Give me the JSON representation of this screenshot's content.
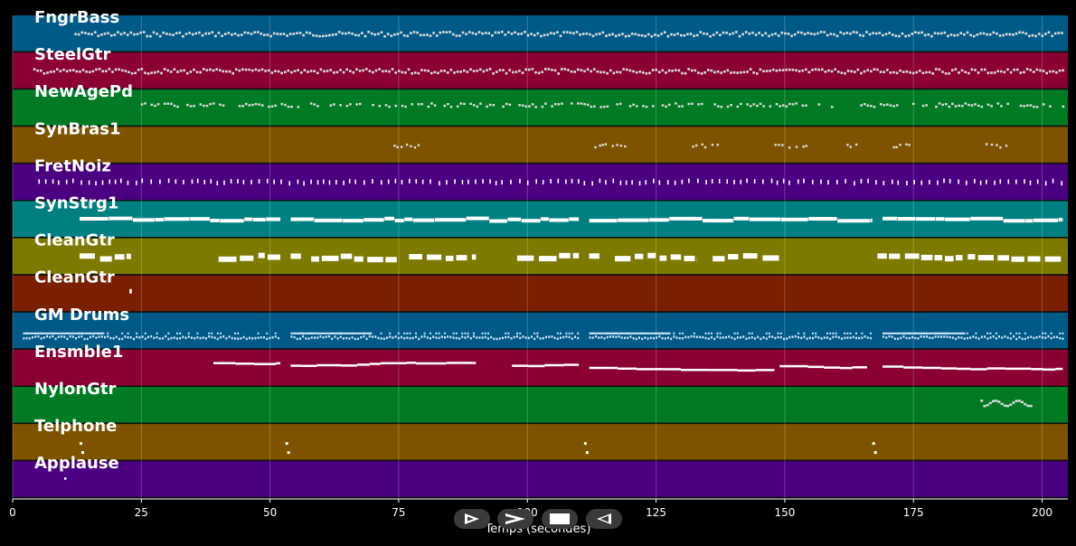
{
  "chart_data": {
    "type": "piano-roll",
    "xlabel": "Temps (secondes)",
    "xlim": [
      0,
      205
    ],
    "x_ticks": [
      0,
      25,
      50,
      75,
      100,
      125,
      150,
      175,
      200
    ],
    "grid": true,
    "tracks": [
      {
        "name": "FngrBass",
        "color": "#005a87",
        "segments": [
          [
            12,
            204
          ]
        ],
        "style": "dense-small"
      },
      {
        "name": "SteelGtr",
        "color": "#8a0032",
        "segments": [
          [
            4,
            204
          ]
        ],
        "style": "dense-small"
      },
      {
        "name": "NewAgePd",
        "color": "#007a23",
        "segments": [
          [
            23,
            204
          ]
        ],
        "style": "sparse-small"
      },
      {
        "name": "SynBras1",
        "color": "#7d5300",
        "segments": [
          [
            74,
            79
          ],
          [
            113,
            119
          ],
          [
            132,
            137
          ],
          [
            148,
            154
          ],
          [
            162,
            164
          ],
          [
            171,
            175
          ],
          [
            189,
            193
          ]
        ],
        "style": "dots"
      },
      {
        "name": "FretNoiz",
        "color": "#4a0080",
        "segments": [
          [
            5,
            204
          ]
        ],
        "style": "ticks"
      },
      {
        "name": "SynStrg1",
        "color": "#008080",
        "segments": [
          [
            13,
            52
          ],
          [
            54,
            110
          ],
          [
            112,
            167
          ],
          [
            169,
            204
          ]
        ],
        "style": "bars"
      },
      {
        "name": "CleanGtr",
        "color": "#7d7a00",
        "segments": [
          [
            13,
            23
          ],
          [
            40,
            52
          ],
          [
            54,
            56
          ],
          [
            58,
            75
          ],
          [
            77,
            90
          ],
          [
            98,
            110
          ],
          [
            112,
            114
          ],
          [
            117,
            133
          ],
          [
            136,
            149
          ],
          [
            168,
            204
          ]
        ],
        "style": "blocks"
      },
      {
        "name": "CleanGtr",
        "color": "#7a1f00",
        "segments": [
          [
            22,
            23
          ]
        ],
        "style": "single"
      },
      {
        "name": "GM Drums",
        "color": "#005a87",
        "segments": [
          [
            2,
            52
          ],
          [
            54,
            110
          ],
          [
            112,
            167
          ],
          [
            169,
            204
          ]
        ],
        "style": "drums"
      },
      {
        "name": "Ensmble1",
        "color": "#8a0032",
        "segments": [
          [
            39,
            52
          ],
          [
            54,
            90
          ],
          [
            97,
            110
          ],
          [
            112,
            148
          ],
          [
            149,
            166
          ],
          [
            169,
            204
          ]
        ],
        "style": "lines"
      },
      {
        "name": "NylonGtr",
        "color": "#007a23",
        "segments": [
          [
            188,
            198
          ]
        ],
        "style": "squiggle"
      },
      {
        "name": "Telphone",
        "color": "#7d5300",
        "segments": [
          [
            13,
            13.5
          ],
          [
            53,
            53.5
          ],
          [
            111,
            111.5
          ],
          [
            167,
            167.5
          ]
        ],
        "style": "dots2"
      },
      {
        "name": "Applause",
        "color": "#4a0080",
        "segments": [
          [
            10,
            10.5
          ]
        ],
        "style": "single-low"
      }
    ]
  },
  "controls": [
    {
      "name": "play-icon",
      "glyph": "play"
    },
    {
      "name": "forward-icon",
      "glyph": "forward"
    },
    {
      "name": "stop-icon",
      "glyph": "stop"
    },
    {
      "name": "rewind-icon",
      "glyph": "rewind"
    }
  ]
}
